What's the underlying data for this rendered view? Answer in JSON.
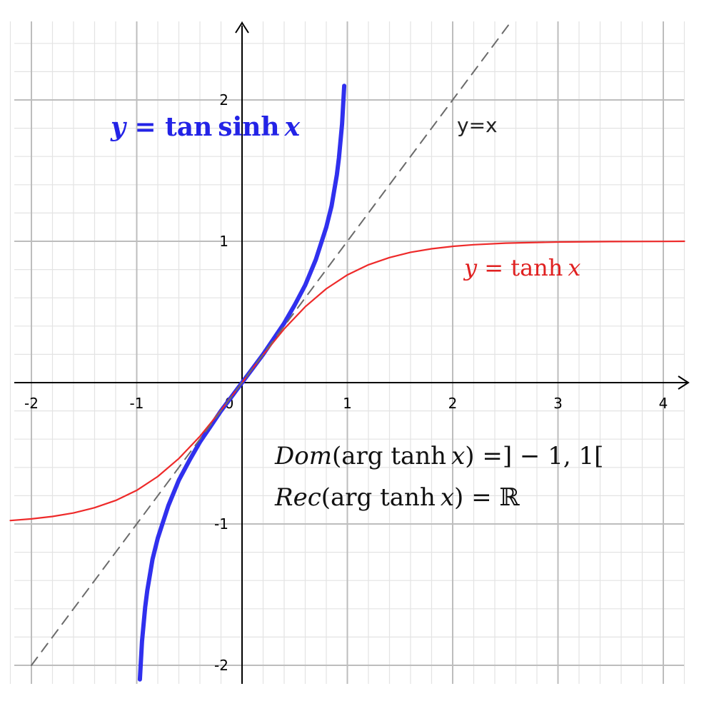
{
  "chart_data": {
    "type": "line",
    "title": "",
    "xlabel": "",
    "ylabel": "",
    "xlim": [
      -2.2,
      4.2
    ],
    "ylim": [
      -2.12,
      2.55
    ],
    "grid": true,
    "minor_grid_step": 0.2,
    "major_grid_step": 1,
    "x_ticks": [
      {
        "value": -2,
        "label": "-2"
      },
      {
        "value": -1,
        "label": "-1"
      },
      {
        "value": 0,
        "label": "0"
      },
      {
        "value": 1,
        "label": "1"
      },
      {
        "value": 2,
        "label": "2"
      },
      {
        "value": 3,
        "label": "3"
      },
      {
        "value": 4,
        "label": "4"
      }
    ],
    "y_ticks": [
      {
        "value": 2,
        "label": "2"
      },
      {
        "value": 1,
        "label": "1"
      },
      {
        "value": -1,
        "label": "-1"
      },
      {
        "value": -2,
        "label": "-2"
      }
    ],
    "series": [
      {
        "label": "y = tan sinh x",
        "color": "#3030ee",
        "style": "solid-thick",
        "x": [
          -0.97,
          -0.95,
          -0.92,
          -0.9,
          -0.85,
          -0.8,
          -0.7,
          -0.6,
          -0.5,
          -0.4,
          -0.3,
          -0.2,
          -0.1,
          0,
          0.1,
          0.2,
          0.3,
          0.4,
          0.5,
          0.6,
          0.7,
          0.8,
          0.85,
          0.9,
          0.92,
          0.95,
          0.97
        ],
        "y": [
          -2.1,
          -1.83,
          -1.59,
          -1.47,
          -1.25,
          -1.1,
          -0.87,
          -0.69,
          -0.55,
          -0.42,
          -0.31,
          -0.2,
          -0.1,
          0,
          0.1,
          0.2,
          0.31,
          0.42,
          0.55,
          0.69,
          0.87,
          1.1,
          1.25,
          1.47,
          1.59,
          1.83,
          2.1
        ]
      },
      {
        "label": "y = tanh x",
        "color": "#ee2a2a",
        "style": "solid",
        "x": [
          -2.2,
          -2,
          -1.8,
          -1.6,
          -1.4,
          -1.2,
          -1,
          -0.8,
          -0.6,
          -0.4,
          -0.2,
          0,
          0.2,
          0.4,
          0.6,
          0.8,
          1,
          1.2,
          1.4,
          1.6,
          1.8,
          2,
          2.2,
          2.5,
          3,
          3.5,
          4,
          4.2
        ],
        "y": [
          -0.976,
          -0.964,
          -0.947,
          -0.922,
          -0.885,
          -0.834,
          -0.762,
          -0.664,
          -0.537,
          -0.38,
          -0.197,
          0,
          0.197,
          0.38,
          0.537,
          0.664,
          0.762,
          0.834,
          0.885,
          0.922,
          0.947,
          0.964,
          0.976,
          0.987,
          0.995,
          0.998,
          0.999,
          1.0
        ]
      },
      {
        "label": "y=x",
        "color": "#6b6b6b",
        "style": "dashed",
        "x": [
          -2.0,
          2.55
        ],
        "y": [
          -2.0,
          2.55
        ]
      }
    ],
    "annotations": {
      "tansinh": {
        "pre": "y",
        "eq": " = ",
        "op1": "tan",
        "op2": "sinh",
        "var": "x",
        "color": "#2323e6"
      },
      "yx": {
        "text": "y=x",
        "color": "#222222"
      },
      "tanh": {
        "pre": "y",
        "eq": " = ",
        "op": "tanh",
        "var": "x",
        "color": "#e02020"
      },
      "dom": {
        "name": "Dom",
        "open": "(",
        "func": "arg tanh",
        "var": "x",
        "close": ")",
        "rest": " =] − 1, 1[",
        "color": "#111111"
      },
      "rec": {
        "name": "Rec",
        "open": "(",
        "func": "arg tanh",
        "var": "x",
        "close": ")",
        "rest": " = ℝ",
        "color": "#111111"
      }
    }
  }
}
